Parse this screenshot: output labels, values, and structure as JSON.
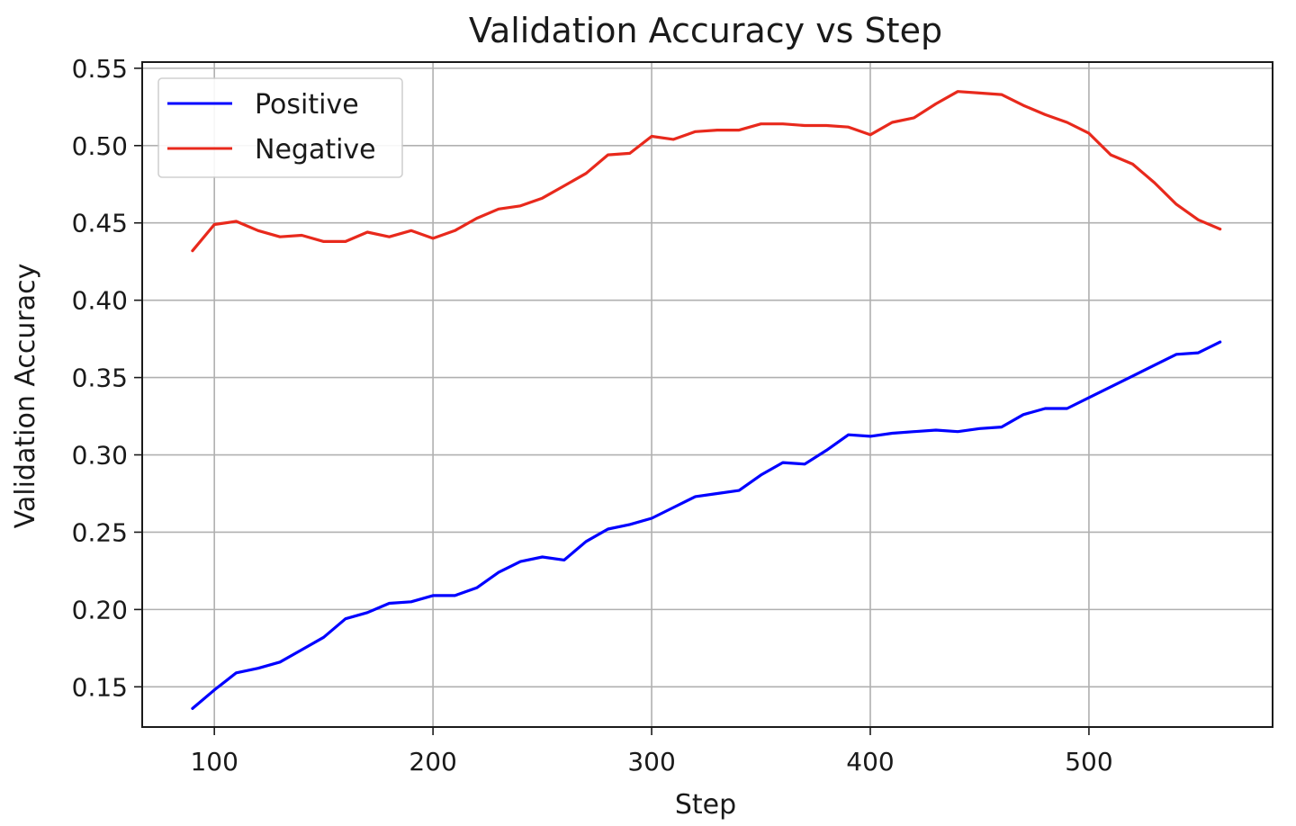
{
  "chart_data": {
    "type": "line",
    "title": "Validation Accuracy vs Step",
    "xlabel": "Step",
    "ylabel": "Validation Accuracy",
    "xlim": [
      67,
      584
    ],
    "ylim": [
      0.124,
      0.554
    ],
    "xticks": [
      100,
      200,
      300,
      400,
      500
    ],
    "yticks": [
      0.15,
      0.2,
      0.25,
      0.3,
      0.35,
      0.4,
      0.45,
      0.5,
      0.55
    ],
    "xtick_labels": [
      "100",
      "200",
      "300",
      "400",
      "500"
    ],
    "ytick_labels": [
      "0.15",
      "0.20",
      "0.25",
      "0.30",
      "0.35",
      "0.40",
      "0.45",
      "0.50",
      "0.55"
    ],
    "grid": true,
    "legend_position": "top-left",
    "x": [
      90,
      100,
      110,
      120,
      130,
      140,
      150,
      160,
      170,
      180,
      190,
      200,
      210,
      220,
      230,
      240,
      250,
      260,
      270,
      280,
      290,
      300,
      310,
      320,
      330,
      340,
      350,
      360,
      370,
      380,
      390,
      400,
      410,
      420,
      430,
      440,
      450,
      460,
      470,
      480,
      490,
      500,
      510,
      520,
      530,
      540,
      550,
      560
    ],
    "series": [
      {
        "name": "Positive",
        "color": "#0000ff",
        "values": [
          0.136,
          0.148,
          0.159,
          0.162,
          0.166,
          0.174,
          0.182,
          0.194,
          0.198,
          0.204,
          0.205,
          0.209,
          0.209,
          0.214,
          0.224,
          0.231,
          0.234,
          0.232,
          0.244,
          0.252,
          0.255,
          0.259,
          0.266,
          0.273,
          0.275,
          0.277,
          0.287,
          0.295,
          0.294,
          0.303,
          0.313,
          0.312,
          0.314,
          0.315,
          0.316,
          0.315,
          0.317,
          0.318,
          0.326,
          0.33,
          0.33,
          0.337,
          0.344,
          0.351,
          0.358,
          0.365,
          0.366,
          0.373
        ]
      },
      {
        "name": "Negative",
        "color": "#e8291c",
        "values": [
          0.432,
          0.449,
          0.451,
          0.445,
          0.441,
          0.442,
          0.438,
          0.438,
          0.444,
          0.441,
          0.445,
          0.44,
          0.445,
          0.453,
          0.459,
          0.461,
          0.466,
          0.474,
          0.482,
          0.494,
          0.495,
          0.506,
          0.504,
          0.509,
          0.51,
          0.51,
          0.514,
          0.514,
          0.513,
          0.513,
          0.512,
          0.507,
          0.515,
          0.518,
          0.527,
          0.535,
          0.534,
          0.533,
          0.526,
          0.52,
          0.515,
          0.508,
          0.494,
          0.488,
          0.476,
          0.462,
          0.452,
          0.446
        ]
      }
    ]
  }
}
